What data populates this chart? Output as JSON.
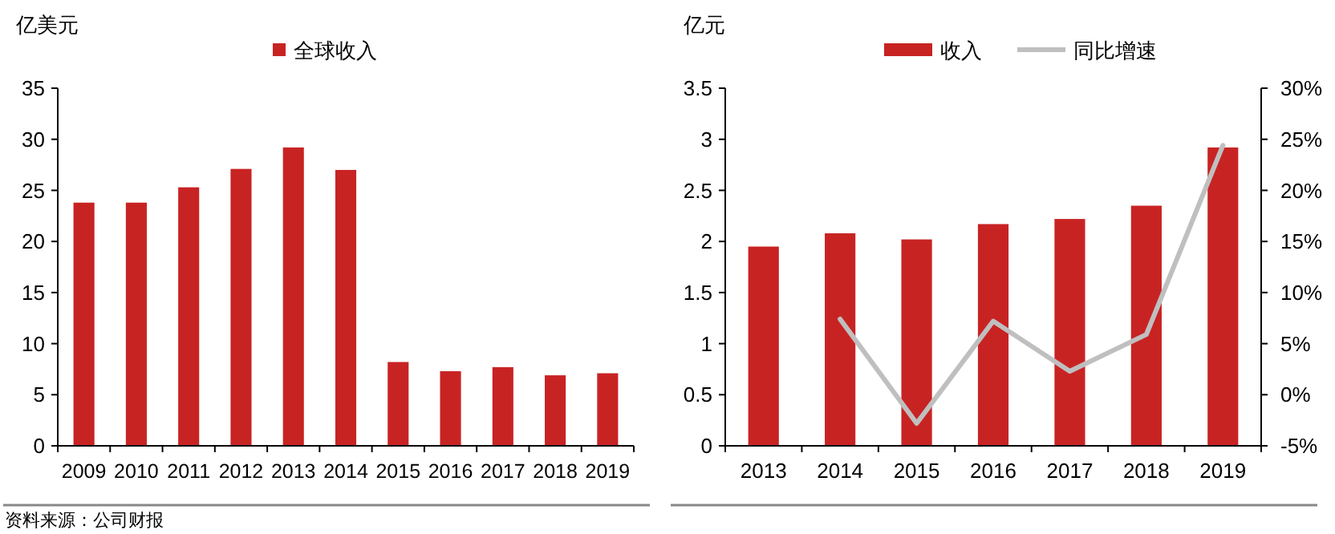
{
  "chart_data": [
    {
      "type": "bar",
      "ylabel": "亿美元",
      "categories": [
        "2009",
        "2010",
        "2011",
        "2012",
        "2013",
        "2014",
        "2015",
        "2016",
        "2017",
        "2018",
        "2019"
      ],
      "series": [
        {
          "name": "全球收入",
          "color": "#c82323",
          "values": [
            23.8,
            23.8,
            25.3,
            27.1,
            29.2,
            27.0,
            8.2,
            7.3,
            7.7,
            6.9,
            7.1
          ]
        }
      ],
      "ylim": [
        0,
        35
      ],
      "yticks": [
        0,
        5,
        10,
        15,
        20,
        25,
        30,
        35
      ],
      "grid": false,
      "legend": "top",
      "annotations": [
        "资料来源：公司财报"
      ]
    },
    {
      "type": "bar",
      "ylabel": "亿元",
      "categories": [
        "2013",
        "2014",
        "2015",
        "2016",
        "2017",
        "2018",
        "2019"
      ],
      "series": [
        {
          "name": "收入",
          "color": "#c82323",
          "values": [
            1.95,
            2.08,
            2.02,
            2.17,
            2.22,
            2.35,
            2.92
          ]
        },
        {
          "name": "同比增速",
          "type": "line",
          "axis": "y2",
          "color": "#bfbfbf",
          "values": [
            null,
            7.4,
            -2.8,
            7.2,
            2.3,
            5.9,
            24.4
          ]
        }
      ],
      "ylim": [
        0,
        3.5
      ],
      "yticks": [
        0,
        0.5,
        1,
        1.5,
        2,
        2.5,
        3,
        3.5
      ],
      "y2lim": [
        -5,
        30
      ],
      "y2ticks": [
        {
          "value": -5,
          "label": "-5%"
        },
        {
          "value": 0,
          "label": "0%"
        },
        {
          "value": 5,
          "label": "5%"
        },
        {
          "value": 10,
          "label": "10%"
        },
        {
          "value": 15,
          "label": "15%"
        },
        {
          "value": 20,
          "label": "20%"
        },
        {
          "value": 25,
          "label": "25%"
        },
        {
          "value": 30,
          "label": "30%"
        }
      ],
      "grid": false,
      "legend": "top"
    }
  ]
}
